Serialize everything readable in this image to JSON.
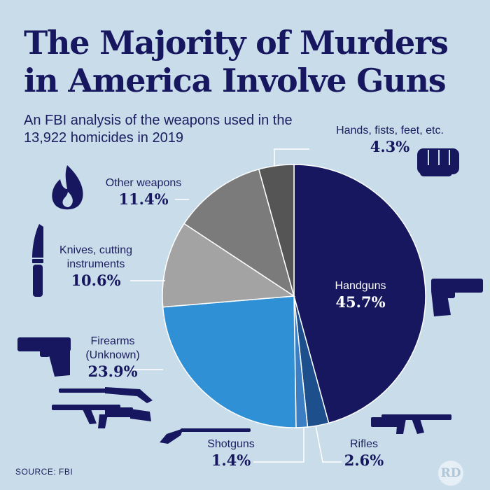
{
  "title": "The Majority of Murders in America Involve Guns",
  "subtitle": "An FBI analysis of the weapons used in the 13,922 homicides in 2019",
  "source": "SOURCE: FBI",
  "logo_text": "RD",
  "colors": {
    "background": "#c9dcea",
    "handguns": "#16175e",
    "rifles": "#1d4f8c",
    "shotguns": "#3c7ec4",
    "firearms_unknown": "#2f90d6",
    "knives": "#a3a3a3",
    "other": "#7b7b7b",
    "hands": "#555555"
  },
  "icons": [
    "fist-icon",
    "pistol-icon",
    "assault-rifle-icon",
    "shotgun-icon",
    "fire-icon",
    "knife-icon"
  ],
  "chart_data": {
    "type": "pie",
    "start": "12 o'clock",
    "direction": "clockwise",
    "slices": [
      {
        "key": "handguns",
        "label": "Handguns",
        "display": "45.7%",
        "value": 45.7,
        "color": "#16175e"
      },
      {
        "key": "rifles",
        "label": "Rifles",
        "display": "2.6%",
        "value": 2.6,
        "color": "#1d4f8c"
      },
      {
        "key": "shotguns",
        "label": "Shotguns",
        "display": "1.4%",
        "value": 1.4,
        "color": "#3c7ec4"
      },
      {
        "key": "firearms_unknown",
        "label": "Firearms (Unknown)",
        "display": "23.9%",
        "value": 23.9,
        "color": "#2f90d6"
      },
      {
        "key": "knives",
        "label": "Knives, cutting instruments",
        "display": "10.6%",
        "value": 10.6,
        "color": "#a3a3a3"
      },
      {
        "key": "other",
        "label": "Other weapons",
        "display": "11.4%",
        "value": 11.4,
        "color": "#7b7b7b"
      },
      {
        "key": "hands",
        "label": "Hands, fists, feet, etc.",
        "display": "4.3%",
        "value": 4.3,
        "color": "#555555"
      }
    ]
  }
}
